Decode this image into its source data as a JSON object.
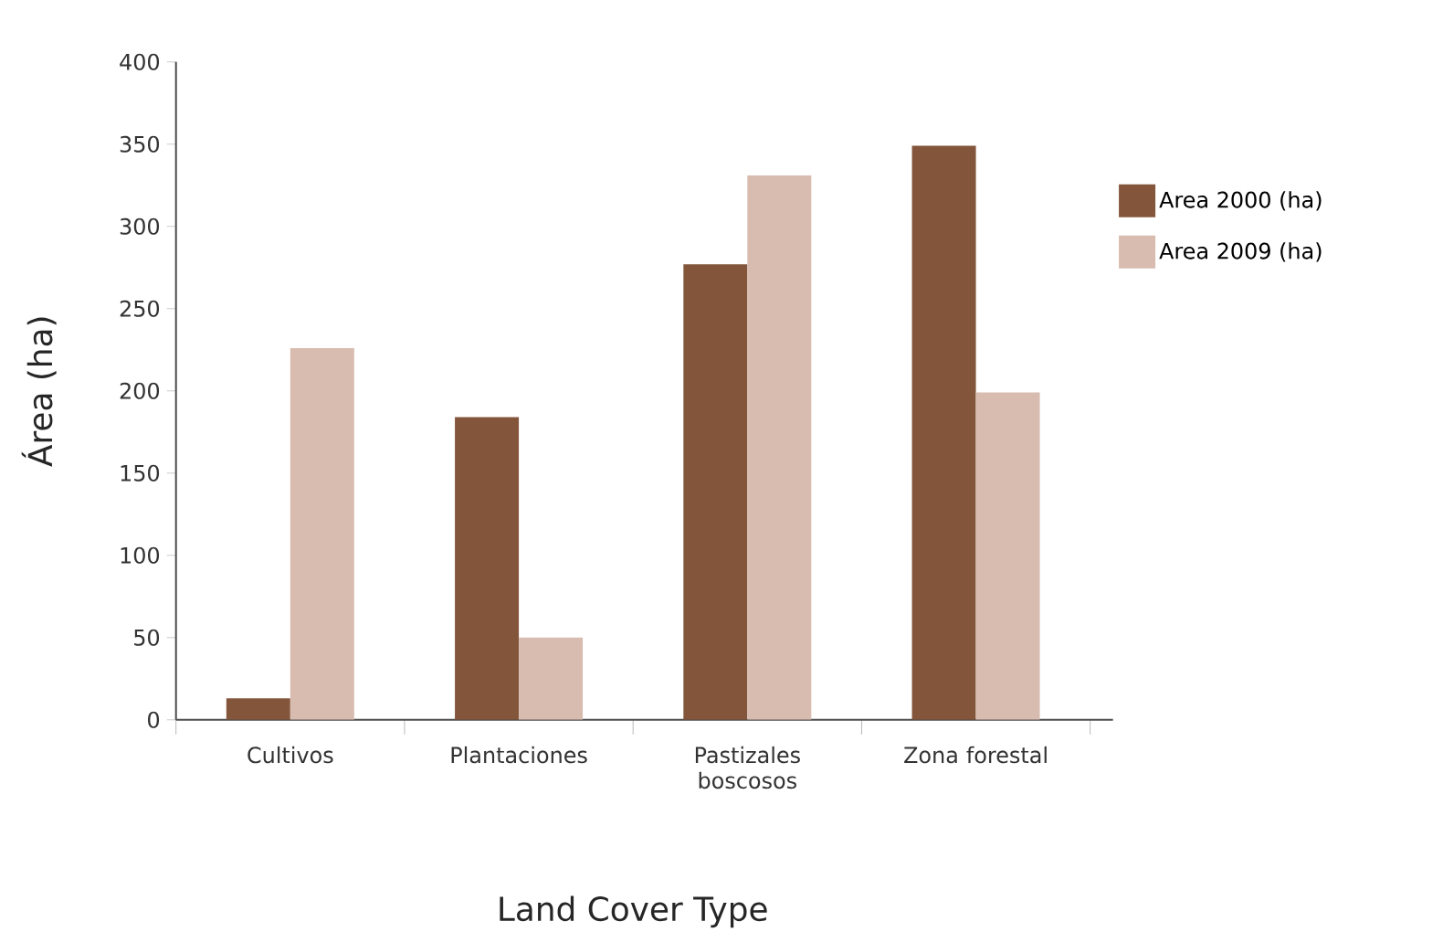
{
  "chart_data": {
    "type": "bar",
    "xlabel": "Land Cover Type",
    "ylabel": "Área (ha)",
    "categories": [
      "Cultivos",
      "Plantaciones",
      "Pastizales boscosos",
      "Zona forestal"
    ],
    "series": [
      {
        "name": "Area 2000 (ha)",
        "color": "#83563b",
        "values": [
          13,
          184,
          277,
          349
        ]
      },
      {
        "name": "Area 2009 (ha)",
        "color": "#d9bcb0",
        "values": [
          226,
          50,
          331,
          199
        ]
      }
    ],
    "ylim": [
      0,
      400
    ],
    "yticks": [
      0,
      50,
      100,
      150,
      200,
      250,
      300,
      350,
      400
    ],
    "grid": false,
    "legend": "right"
  }
}
